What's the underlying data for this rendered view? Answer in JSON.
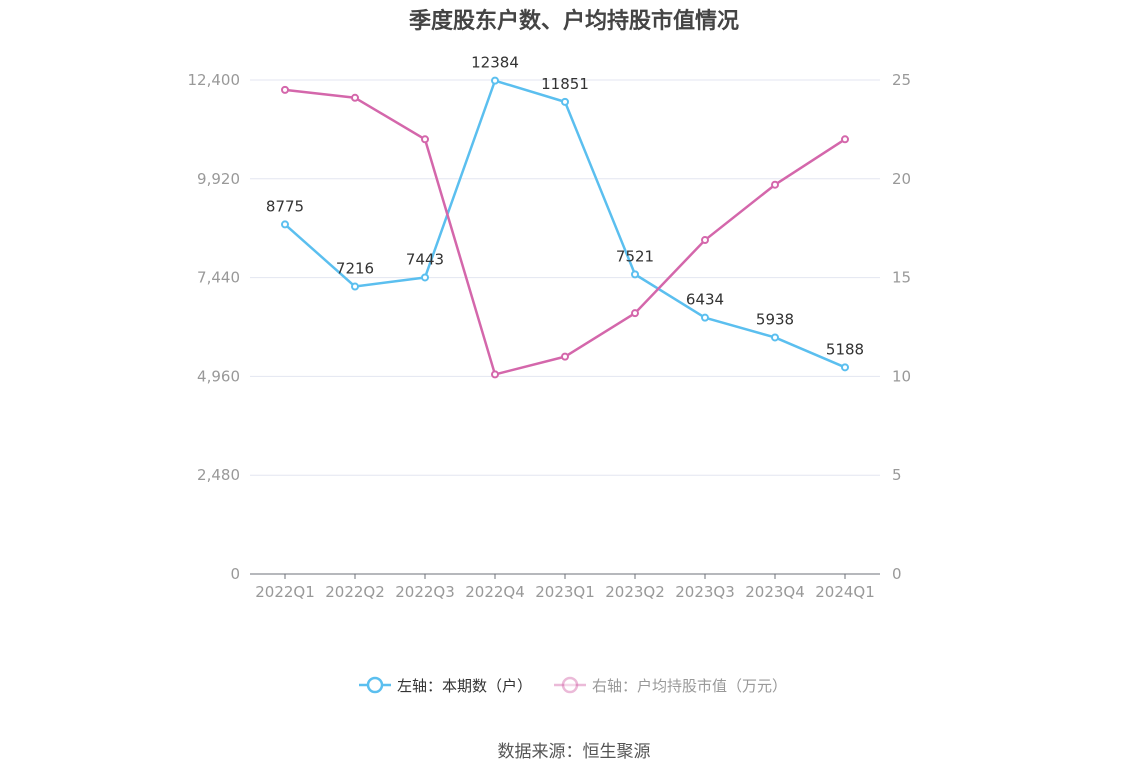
{
  "chart_data": {
    "type": "line",
    "title": "季度股东户数、户均持股市值情况",
    "categories": [
      "2022Q1",
      "2022Q2",
      "2022Q3",
      "2022Q4",
      "2023Q1",
      "2023Q2",
      "2023Q3",
      "2023Q4",
      "2024Q1"
    ],
    "series": [
      {
        "name": "左轴：本期数（户）",
        "axis": "left",
        "color": "#5bbfef",
        "values": [
          8775,
          7216,
          7443,
          12384,
          11851,
          7521,
          6434,
          5938,
          5188
        ],
        "data_labels": true
      },
      {
        "name": "右轴：户均持股市值（万元）",
        "axis": "right",
        "color": "#d467ab",
        "values": [
          24.5,
          24.1,
          22.0,
          10.1,
          11.0,
          13.2,
          16.9,
          19.7,
          22.0
        ],
        "data_labels": false
      }
    ],
    "y_left": {
      "ylim": [
        0,
        12400
      ],
      "ticks": [
        0,
        2480,
        4960,
        7440,
        9920,
        12400
      ],
      "tick_labels": [
        "0",
        "2,480",
        "4,960",
        "7,440",
        "9,920",
        "12,400"
      ]
    },
    "y_right": {
      "ylim": [
        0,
        25
      ],
      "ticks": [
        0,
        5,
        10,
        15,
        20,
        25
      ],
      "tick_labels": [
        "0",
        "5",
        "10",
        "15",
        "20",
        "25"
      ]
    },
    "grid": true,
    "legend_position": "bottom"
  },
  "source": "数据来源：恒生聚源"
}
